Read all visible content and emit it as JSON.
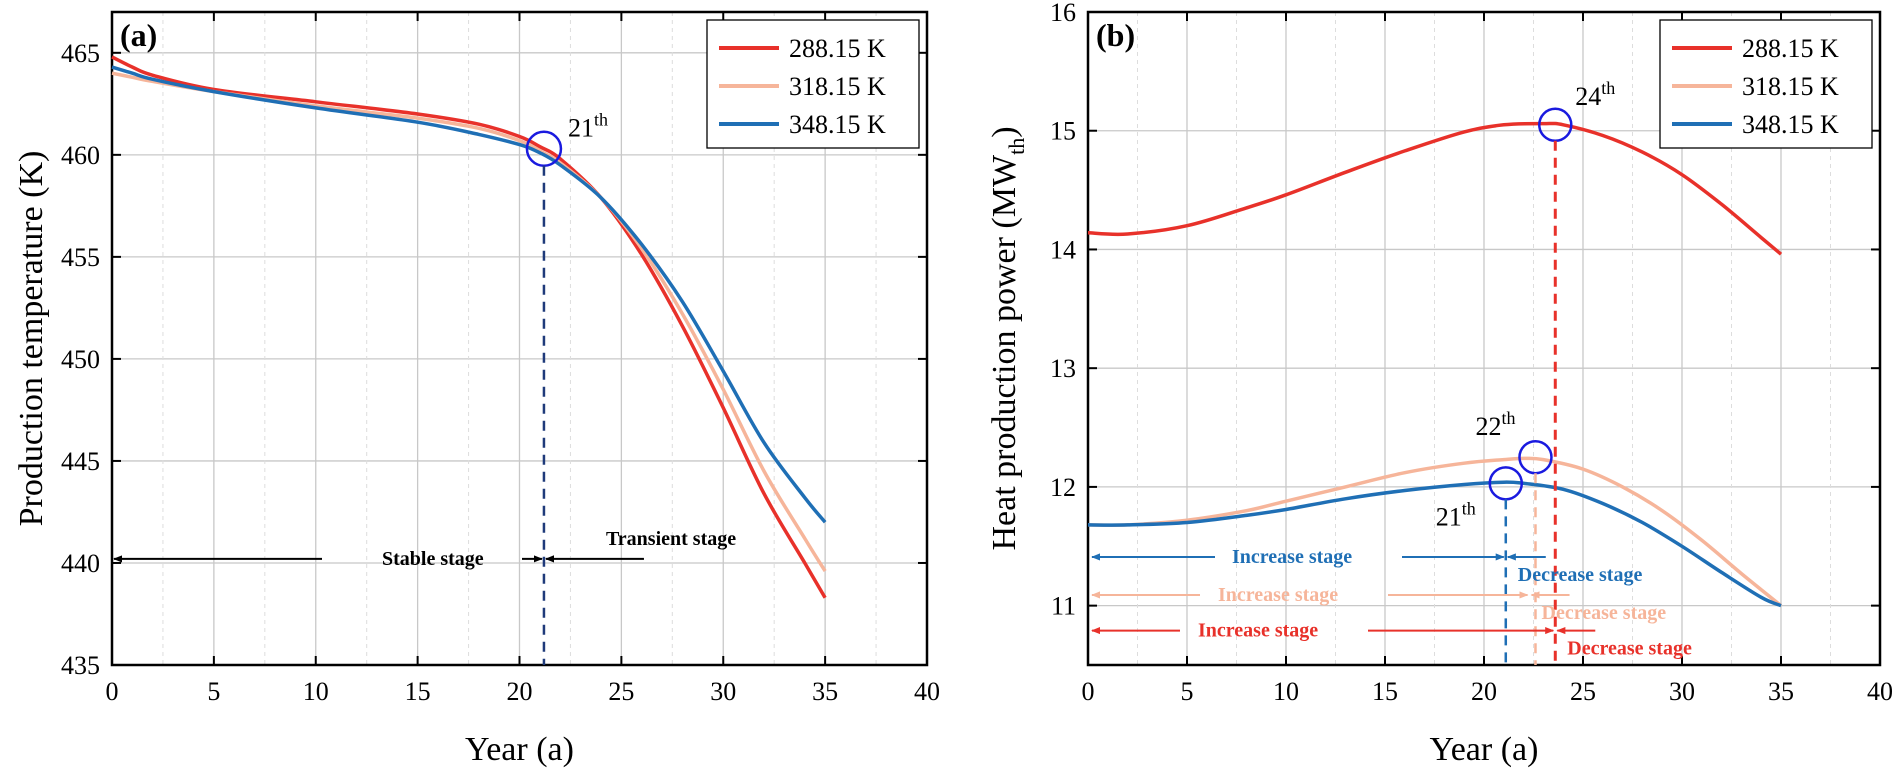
{
  "colors": {
    "c288": "#e8312a",
    "c318": "#f6b59a",
    "c348": "#1f6fb5",
    "circle": "#1a1adf",
    "blue_dash": "#1f3a7a"
  },
  "chart_data": [
    {
      "type": "line",
      "panel_label": "(a)",
      "xlabel": "Year (a)",
      "ylabel": "Production temperature (K)",
      "xlim": [
        0,
        40
      ],
      "ylim": [
        435,
        467
      ],
      "xticks": [
        0,
        5,
        10,
        15,
        20,
        25,
        30,
        35,
        40
      ],
      "yticks": [
        435,
        440,
        445,
        450,
        455,
        460,
        465
      ],
      "grid": true,
      "legend_position": "top-right",
      "series": [
        {
          "name": "288.15 K",
          "color": "#e8312a",
          "x": [
            0,
            1,
            2,
            5,
            10,
            15,
            18,
            20,
            21,
            22,
            24,
            26,
            28,
            30,
            32,
            34,
            35
          ],
          "y": [
            464.8,
            464.3,
            463.9,
            463.2,
            462.6,
            462.0,
            461.5,
            460.9,
            460.4,
            459.8,
            457.9,
            455.1,
            451.6,
            447.6,
            443.4,
            440.0,
            438.3
          ]
        },
        {
          "name": "318.15 K",
          "color": "#f6b59a",
          "x": [
            0,
            1,
            2,
            5,
            10,
            15,
            18,
            20,
            21,
            22,
            24,
            26,
            28,
            30,
            32,
            34,
            35
          ],
          "y": [
            464.0,
            463.8,
            463.6,
            463.1,
            462.4,
            461.8,
            461.3,
            460.7,
            460.2,
            459.6,
            457.9,
            455.4,
            452.2,
            448.5,
            444.5,
            441.2,
            439.6
          ]
        },
        {
          "name": "348.15 K",
          "color": "#1f6fb5",
          "x": [
            0,
            1,
            2,
            5,
            10,
            15,
            18,
            20,
            21,
            22,
            24,
            26,
            28,
            30,
            32,
            34,
            35
          ],
          "y": [
            464.3,
            464.0,
            463.7,
            463.1,
            462.3,
            461.6,
            461.0,
            460.5,
            460.1,
            459.5,
            457.9,
            455.6,
            452.8,
            449.4,
            445.9,
            443.2,
            442.0
          ]
        }
      ],
      "annotations": {
        "circle_label_base": "21",
        "circle_label_sup": "th",
        "circle_at": [
          21.2,
          460.3
        ],
        "stage1": "Stable stage",
        "stage2": "Transient stage",
        "stage_y": 440.2,
        "stage_split": 21.2
      }
    },
    {
      "type": "line",
      "panel_label": "(b)",
      "xlabel": "Year (a)",
      "ylabel_main": "Heat production power (MW",
      "ylabel_sub": "th",
      "ylabel_end": ")",
      "xlim": [
        0,
        40
      ],
      "ylim": [
        10.5,
        16
      ],
      "xticks": [
        0,
        5,
        10,
        15,
        20,
        25,
        30,
        35,
        40
      ],
      "yticks": [
        11,
        12,
        13,
        14,
        15,
        16
      ],
      "grid": true,
      "legend_position": "top-right",
      "series": [
        {
          "name": "288.15 K",
          "color": "#e8312a",
          "x": [
            0,
            2,
            5,
            8,
            10,
            13,
            16,
            19,
            21,
            23,
            24,
            26,
            28,
            30,
            32,
            34,
            35
          ],
          "y": [
            14.14,
            14.13,
            14.2,
            14.35,
            14.46,
            14.65,
            14.83,
            14.99,
            15.05,
            15.06,
            15.05,
            14.96,
            14.82,
            14.63,
            14.38,
            14.1,
            13.96
          ]
        },
        {
          "name": "318.15 K",
          "color": "#f6b59a",
          "x": [
            0,
            2,
            5,
            8,
            10,
            13,
            16,
            19,
            21,
            22,
            23,
            25,
            27,
            29,
            31,
            33,
            35
          ],
          "y": [
            11.68,
            11.68,
            11.72,
            11.8,
            11.88,
            12.0,
            12.12,
            12.2,
            12.23,
            12.24,
            12.23,
            12.15,
            12.0,
            11.8,
            11.55,
            11.27,
            11.0
          ]
        },
        {
          "name": "348.15 K",
          "color": "#1f6fb5",
          "x": [
            0,
            2,
            5,
            8,
            10,
            13,
            16,
            19,
            21,
            22,
            24,
            26,
            28,
            30,
            32,
            34,
            35
          ],
          "y": [
            11.68,
            11.68,
            11.7,
            11.76,
            11.81,
            11.9,
            11.97,
            12.02,
            12.04,
            12.03,
            11.98,
            11.86,
            11.7,
            11.5,
            11.28,
            11.07,
            11.0
          ]
        }
      ],
      "annotations": {
        "circles": [
          {
            "base": "24",
            "sup": "th",
            "at": [
              23.6,
              15.05
            ]
          },
          {
            "base": "22",
            "sup": "th",
            "at": [
              22.6,
              12.25
            ]
          },
          {
            "base": "21",
            "sup": "th",
            "at": [
              21.1,
              12.03
            ]
          }
        ],
        "stages": [
          {
            "increase": "Increase stage",
            "decrease": "Decrease stage",
            "color": "#1f6fb5",
            "y": 11.41,
            "split": 21.1
          },
          {
            "increase": "Increase stage",
            "decrease": "Decrease stage",
            "color": "#f6b59a",
            "y": 11.09,
            "split": 22.3
          },
          {
            "increase": "Increase stage",
            "decrease": "Decrease stage",
            "color": "#e8312a",
            "y": 10.79,
            "split": 23.6
          }
        ]
      }
    }
  ]
}
